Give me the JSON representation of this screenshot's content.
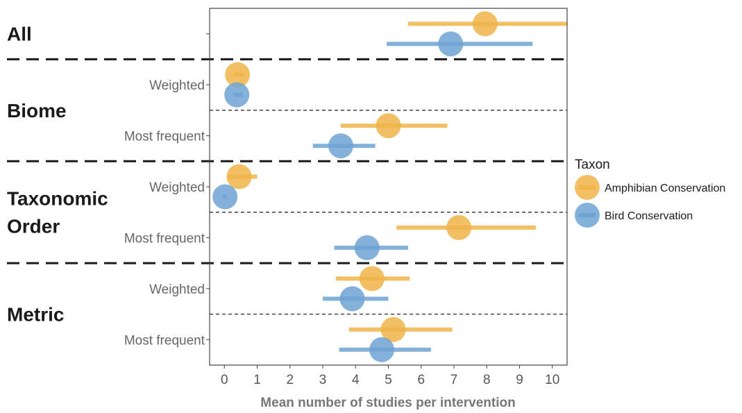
{
  "chart_data": {
    "type": "scatter",
    "title": "",
    "xlabel": "Mean number of studies per intervention",
    "ylabel": "",
    "xlim": [
      -0.45,
      10.45
    ],
    "xticks": [
      0,
      1,
      2,
      3,
      4,
      5,
      6,
      7,
      8,
      9,
      10
    ],
    "grid": false,
    "legend": {
      "title": "Taxon",
      "position": "right",
      "entries": [
        {
          "key": "amph",
          "label": "Amphibian Conservation",
          "color": "#F0B449"
        },
        {
          "key": "bird",
          "label": "Bird Conservation",
          "color": "#6FA3D4"
        }
      ]
    },
    "groups": [
      {
        "key": "all",
        "label": "All",
        "label_lines": [
          "All"
        ]
      },
      {
        "key": "biome",
        "label": "Biome",
        "label_lines": [
          "Biome"
        ]
      },
      {
        "key": "taxonomic_order",
        "label": "Taxonomic Order",
        "label_lines": [
          "Taxonomic",
          "Order"
        ]
      },
      {
        "key": "metric",
        "label": "Metric",
        "label_lines": [
          "Metric"
        ]
      }
    ],
    "rows": [
      {
        "group": "all",
        "label": "",
        "amph": {
          "mean": 7.95,
          "low": 5.6,
          "high": 10.5
        },
        "bird": {
          "mean": 6.9,
          "low": 4.95,
          "high": 9.4
        }
      },
      {
        "group": "biome",
        "label": "Weighted",
        "amph": {
          "mean": 0.4,
          "low": 0.28,
          "high": 0.6
        },
        "bird": {
          "mean": 0.38,
          "low": 0.28,
          "high": 0.55
        }
      },
      {
        "group": "biome",
        "label": "Most frequent",
        "amph": {
          "mean": 5.0,
          "low": 3.55,
          "high": 6.8
        },
        "bird": {
          "mean": 3.55,
          "low": 2.7,
          "high": 4.6
        }
      },
      {
        "group": "taxonomic_order",
        "label": "Weighted",
        "amph": {
          "mean": 0.45,
          "low": 0.1,
          "high": 1.0
        },
        "bird": {
          "mean": 0.02,
          "low": -0.05,
          "high": 0.08
        }
      },
      {
        "group": "taxonomic_order",
        "label": "Most frequent",
        "amph": {
          "mean": 7.15,
          "low": 5.25,
          "high": 9.5
        },
        "bird": {
          "mean": 4.35,
          "low": 3.35,
          "high": 5.6
        }
      },
      {
        "group": "metric",
        "label": "Weighted",
        "amph": {
          "mean": 4.5,
          "low": 3.4,
          "high": 5.65
        },
        "bird": {
          "mean": 3.9,
          "low": 3.0,
          "high": 5.0
        }
      },
      {
        "group": "metric",
        "label": "Most frequent",
        "amph": {
          "mean": 5.15,
          "low": 3.8,
          "high": 6.95
        },
        "bird": {
          "mean": 4.8,
          "low": 3.5,
          "high": 6.3
        }
      }
    ]
  }
}
